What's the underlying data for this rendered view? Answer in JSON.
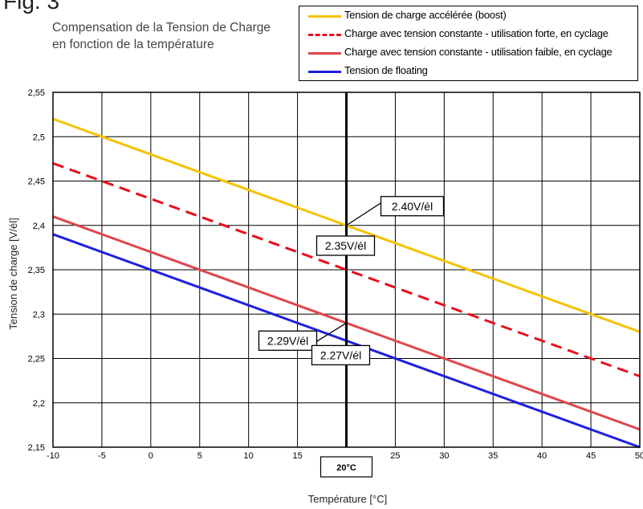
{
  "figure_label": "Fig. 3",
  "chart_data": {
    "type": "line",
    "title": [
      "Compensation de la Tension de Charge",
      "en fonction de la température"
    ],
    "xlabel": "Température [°C]",
    "ylabel": "Tension de charge [V/él]",
    "xlim": [
      -10,
      50
    ],
    "ylim": [
      2.15,
      2.55
    ],
    "x_ticks": [
      -10,
      -5,
      0,
      5,
      10,
      15,
      20,
      25,
      30,
      35,
      40,
      45,
      50
    ],
    "x_tick_labels": [
      "-10",
      "-5",
      "0",
      "5",
      "10",
      "15",
      "",
      "25",
      "30",
      "35",
      "40",
      "45",
      "50"
    ],
    "y_ticks": [
      2.15,
      2.2,
      2.25,
      2.3,
      2.35,
      2.4,
      2.45,
      2.5,
      2.55
    ],
    "y_tick_labels": [
      "2,15",
      "2,2",
      "2,25",
      "2,3",
      "2,35",
      "2,4",
      "2,45",
      "2,5",
      "2,55"
    ],
    "grid": true,
    "legend_position": "top-right",
    "reference_line": {
      "x": 20,
      "label": "20°C"
    },
    "series": [
      {
        "name": "Tension de charge accélérée (boost)",
        "color": "#f5c300",
        "dash": "solid",
        "x": [
          -10,
          50
        ],
        "values": [
          2.52,
          2.28
        ]
      },
      {
        "name": "Charge avec tension constante - utilisation forte, en cyclage",
        "color": "#e8101a",
        "dash": "dashed",
        "x": [
          -10,
          50
        ],
        "values": [
          2.47,
          2.23
        ]
      },
      {
        "name": "Charge avec tension constante - utilisation faible, en cyclage",
        "color": "#e0464c",
        "dash": "solid",
        "x": [
          -10,
          50
        ],
        "values": [
          2.41,
          2.17
        ]
      },
      {
        "name": "Tension de floating",
        "color": "#1f1fe0",
        "dash": "solid",
        "x": [
          -10,
          50
        ],
        "values": [
          2.39,
          2.15
        ]
      }
    ],
    "annotations": [
      {
        "text": "2.40V/él",
        "x": 20,
        "y": 2.4
      },
      {
        "text": "2.35V/él",
        "x": 20,
        "y": 2.35
      },
      {
        "text": "2.29V/él",
        "x": 20,
        "y": 2.29
      },
      {
        "text": "2.27V/él",
        "x": 20,
        "y": 2.27
      }
    ]
  }
}
